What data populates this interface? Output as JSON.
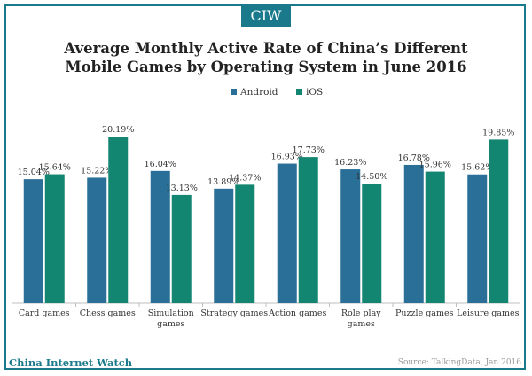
{
  "brand_badge": "CIW",
  "footer": {
    "brand": "China Internet Watch",
    "source": "Source: TalkingData, Jan 2016"
  },
  "colors": {
    "frame": "#1a7a8c",
    "android": "#2a6f97",
    "ios": "#138672"
  },
  "chart_data": {
    "type": "bar",
    "title": "Average Monthly Active Rate of China’s Different Mobile Games by Operating System in June 2016",
    "title_lines": [
      "Average Monthly Active Rate of China’s Different",
      "Mobile Games by Operating System in June 2016"
    ],
    "categories": [
      [
        "Card games"
      ],
      [
        "Chess games"
      ],
      [
        "Simulation",
        "games"
      ],
      [
        "Strategy games"
      ],
      [
        "Action games"
      ],
      [
        "Role play",
        "games"
      ],
      [
        "Puzzle games"
      ],
      [
        "Leisure games"
      ]
    ],
    "series": [
      {
        "name": "Android",
        "values": [
          15.04,
          15.22,
          16.04,
          13.89,
          16.93,
          16.23,
          16.78,
          15.62
        ],
        "labels": [
          "15.04%",
          "15.22%",
          "16.04%",
          "13.89%",
          "16.93%",
          "16.23%",
          "16.78%",
          "15.62%"
        ]
      },
      {
        "name": "iOS",
        "values": [
          15.64,
          20.19,
          13.13,
          14.37,
          17.73,
          14.5,
          15.96,
          19.85
        ],
        "labels": [
          "15.64%",
          "20.19%",
          "13.13%",
          "14.37%",
          "17.73%",
          "14.50%",
          "15.96%",
          "19.85%"
        ]
      }
    ],
    "legend_position": "top-center",
    "grid": false,
    "ylim": [
      0,
      22
    ]
  }
}
